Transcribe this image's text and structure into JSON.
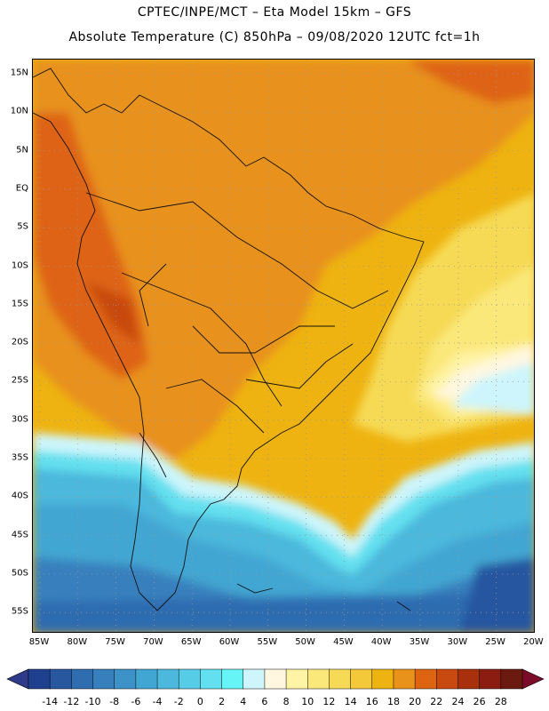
{
  "header": {
    "line1": "CPTEC/INPE/MCT –  Eta Model 15km – GFS",
    "line2": "Absolute Temperature (C) 850hPa – 09/08/2020 12UTC fct=1h"
  },
  "map": {
    "lat_labels": [
      "15N",
      "10N",
      "5N",
      "EQ",
      "5S",
      "10S",
      "15S",
      "20S",
      "25S",
      "30S",
      "35S",
      "40S",
      "45S",
      "50S",
      "55S"
    ],
    "lon_labels": [
      "85W",
      "80W",
      "75W",
      "70W",
      "65W",
      "60W",
      "55W",
      "50W",
      "45W",
      "40W",
      "35W",
      "30W",
      "25W",
      "20W"
    ]
  },
  "colorbar": {
    "labels": [
      "-14",
      "-12",
      "-10",
      "-8",
      "-6",
      "-4",
      "-2",
      "0",
      "2",
      "4",
      "6",
      "8",
      "10",
      "12",
      "14",
      "16",
      "18",
      "20",
      "22",
      "24",
      "26",
      "28"
    ],
    "colors": [
      "#1f3f8f",
      "#2857a0",
      "#2f6cb0",
      "#3880bd",
      "#3d93c8",
      "#42a6d2",
      "#4bb8dc",
      "#57cce6",
      "#63e0ef",
      "#66f4f6",
      "#cdf5fb",
      "#fff7e0",
      "#fff3a6",
      "#fbe87a",
      "#f6da55",
      "#f3c93a",
      "#eeb310",
      "#e8911b",
      "#de6412",
      "#c84a10",
      "#a8300d",
      "#8a1d10",
      "#6b1a10"
    ],
    "low_arrow_color": "#2f3a8a",
    "high_arrow_color": "#7a0c2a"
  }
}
